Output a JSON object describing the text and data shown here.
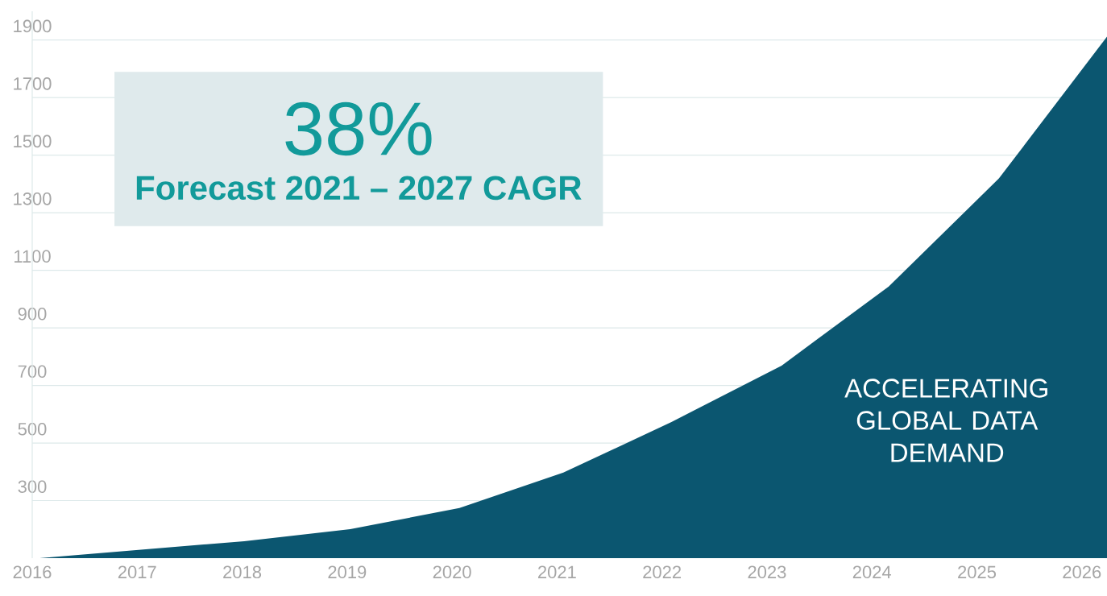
{
  "chart_data": {
    "type": "area",
    "x": [
      2016.07,
      2018.02,
      2019.03,
      2020.07,
      2021.06,
      2022.09,
      2023.14,
      2024.16,
      2025.21,
      2026.24
    ],
    "series": [
      {
        "color": "#0b5670",
        "values": [
          100,
          159,
          201,
          274,
          397,
          573,
          769,
          1044,
          1419,
          1912
        ]
      }
    ],
    "xlim": [
      2016,
      2026.24
    ],
    "ylim": [
      100,
      2000
    ],
    "xticks": [
      2016,
      2017,
      2018,
      2019,
      2020,
      2021,
      2022,
      2023,
      2024,
      2025,
      2026
    ],
    "yticks": [
      300,
      500,
      700,
      900,
      1100,
      1300,
      1500,
      1700,
      1900
    ],
    "grid": "y",
    "annotations": [
      "38%",
      "Forecast 2021 – 2027 CAGR",
      "ACCELERATING GLOBAL DATA DEMAND"
    ]
  }
}
